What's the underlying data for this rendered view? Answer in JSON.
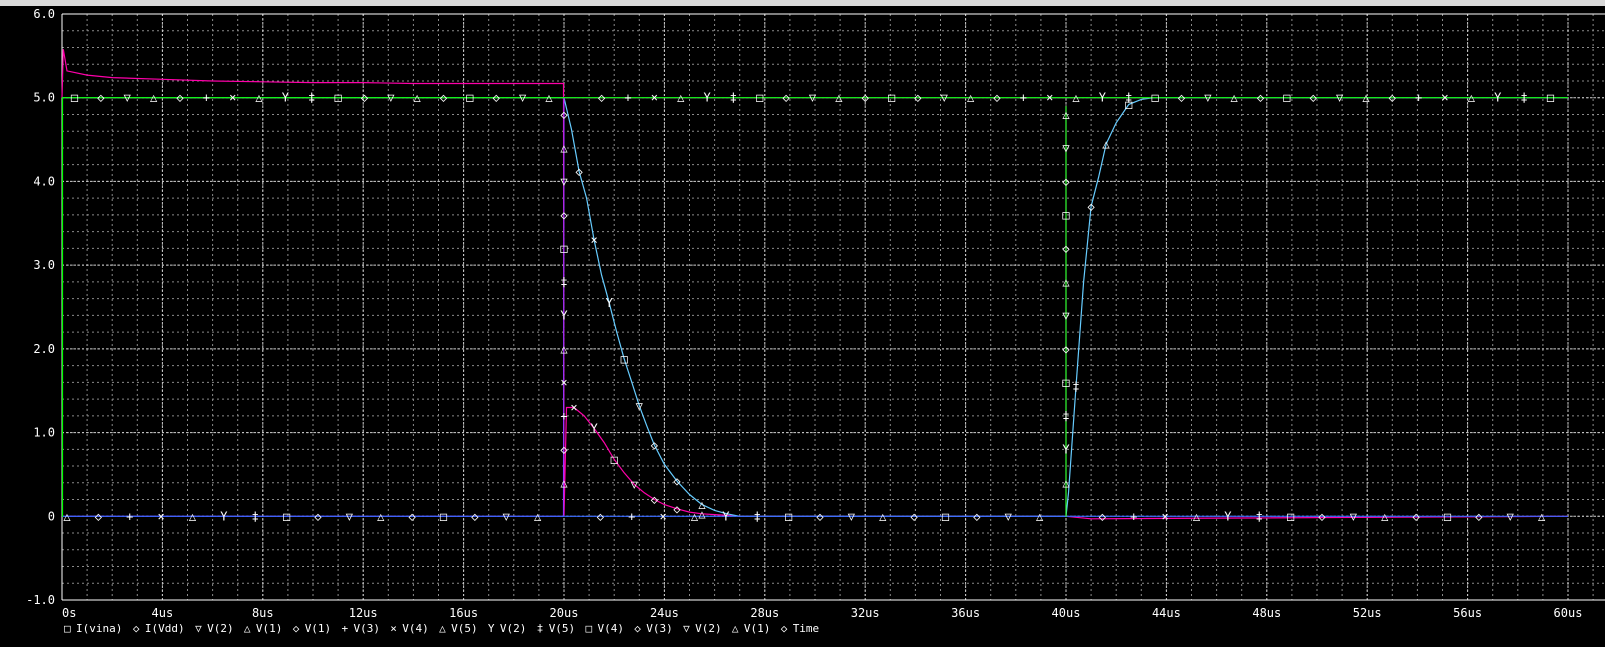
{
  "chart_data": {
    "type": "line",
    "xlim": [
      0,
      60
    ],
    "ylim": [
      -1.0,
      6.0
    ],
    "x_unit": "us",
    "x_ticks": [
      {
        "v": 0,
        "label": "0s"
      },
      {
        "v": 4,
        "label": "4us"
      },
      {
        "v": 8,
        "label": "8us"
      },
      {
        "v": 12,
        "label": "12us"
      },
      {
        "v": 16,
        "label": "16us"
      },
      {
        "v": 20,
        "label": "20us"
      },
      {
        "v": 24,
        "label": "24us"
      },
      {
        "v": 28,
        "label": "28us"
      },
      {
        "v": 32,
        "label": "32us"
      },
      {
        "v": 36,
        "label": "36us"
      },
      {
        "v": 40,
        "label": "40us"
      },
      {
        "v": 44,
        "label": "44us"
      },
      {
        "v": 48,
        "label": "48us"
      },
      {
        "v": 52,
        "label": "52us"
      },
      {
        "v": 56,
        "label": "56us"
      },
      {
        "v": 60,
        "label": "60us"
      }
    ],
    "y_ticks": [
      {
        "v": 6,
        "label": "6.0"
      },
      {
        "v": 5,
        "label": "5.0"
      },
      {
        "v": 4,
        "label": "4.0"
      },
      {
        "v": 3,
        "label": "3.0"
      },
      {
        "v": 2,
        "label": "2.0"
      },
      {
        "v": 1,
        "label": "1.0"
      },
      {
        "v": 0,
        "label": "0"
      },
      {
        "v": -1,
        "label": "-1.0"
      }
    ],
    "grid": true,
    "legend_position": "bottom",
    "legend": [
      {
        "symbol": "□",
        "label": "I(vina)",
        "color": "#00ff00"
      },
      {
        "symbol": "◇",
        "label": "I(Vdd)",
        "color": "#ff3333"
      },
      {
        "symbol": "▽",
        "label": "V(2)",
        "color": "#3366ff"
      },
      {
        "symbol": "△",
        "label": "V(1)",
        "color": "#ffff00"
      },
      {
        "symbol": "◇",
        "label": "V(1)",
        "color": "#ff33ff"
      },
      {
        "symbol": "+",
        "label": "V(3)",
        "color": "#00ffff"
      },
      {
        "symbol": "×",
        "label": "V(4)",
        "color": "#ff8000"
      },
      {
        "symbol": "△",
        "label": "V(5)",
        "color": "#ff3333"
      },
      {
        "symbol": "Y",
        "label": "V(2)",
        "color": "#ffffff"
      },
      {
        "symbol": "‡",
        "label": "V(5)",
        "color": "#ff00ff"
      },
      {
        "symbol": "□",
        "label": "V(4)",
        "color": "#66ccff"
      },
      {
        "symbol": "◇",
        "label": "V(3)",
        "color": "#9966ff"
      },
      {
        "symbol": "▽",
        "label": "V(2)",
        "color": "#00ff00"
      },
      {
        "symbol": "△",
        "label": "V(1)",
        "color": "#ff3333"
      },
      {
        "symbol": "◇",
        "label": "Time",
        "color": "#3333ff"
      }
    ],
    "series": [
      {
        "key": "ref5",
        "color": "#ff3333",
        "x": [
          0,
          60
        ],
        "y": [
          5.0,
          5.0
        ]
      },
      {
        "key": "magenta",
        "color": "#ff00aa",
        "x": [
          0,
          0.05,
          0.2,
          1,
          2,
          4,
          6,
          8,
          10,
          12,
          14,
          16,
          18,
          19.98,
          20.0,
          20.1,
          20.4,
          20.8,
          21.2,
          21.6,
          22.0,
          22.4,
          22.8,
          23.2,
          23.6,
          24.0,
          24.5,
          25.0,
          25.5,
          26.0,
          26.5,
          27.0,
          40.0,
          41.0,
          60.0
        ],
        "y": [
          5.0,
          5.58,
          5.32,
          5.27,
          5.24,
          5.22,
          5.2,
          5.19,
          5.18,
          5.18,
          5.17,
          5.17,
          5.17,
          5.17,
          0.0,
          1.3,
          1.3,
          1.2,
          1.05,
          0.88,
          0.68,
          0.52,
          0.38,
          0.28,
          0.2,
          0.14,
          0.09,
          0.05,
          0.03,
          0.02,
          0.01,
          0.0,
          0.0,
          -0.03,
          0.0
        ]
      },
      {
        "key": "cyan",
        "color": "#66ccff",
        "x": [
          0,
          19.95,
          20.0,
          20.3,
          20.6,
          20.9,
          21.2,
          21.5,
          21.8,
          22.1,
          22.4,
          22.7,
          23.0,
          23.3,
          23.6,
          24.0,
          24.5,
          25.0,
          25.5,
          26.0,
          26.5,
          27.0,
          40.0,
          40.1,
          40.4,
          40.7,
          41.0,
          41.3,
          41.6,
          42.0,
          42.5,
          43.0,
          43.5,
          44.0,
          60.0
        ],
        "y": [
          5.0,
          5.0,
          5.0,
          4.62,
          4.12,
          3.8,
          3.3,
          2.88,
          2.55,
          2.2,
          1.88,
          1.6,
          1.32,
          1.08,
          0.85,
          0.62,
          0.42,
          0.26,
          0.14,
          0.07,
          0.03,
          0.0,
          0.0,
          0.28,
          1.55,
          2.8,
          3.7,
          4.05,
          4.45,
          4.7,
          4.92,
          4.98,
          5.0,
          5.0,
          5.0
        ]
      },
      {
        "key": "violet",
        "color": "#9933ff",
        "x": [
          0,
          19.98,
          20.0,
          60.0
        ],
        "y": [
          0.0,
          0.0,
          5.0,
          5.0
        ]
      },
      {
        "key": "zero",
        "color": "#3366ff",
        "x": [
          0,
          60
        ],
        "y": [
          0.0,
          0.0
        ]
      },
      {
        "key": "green",
        "color": "#00ff00",
        "x": [
          0,
          0.02,
          0.02,
          60
        ],
        "y": [
          0.0,
          0.0,
          5.0,
          5.0
        ]
      },
      {
        "key": "green2",
        "color": "#33ff33",
        "x": [
          39.98,
          40.0,
          40.0
        ],
        "y": [
          0.0,
          0.0,
          4.9
        ]
      }
    ]
  }
}
